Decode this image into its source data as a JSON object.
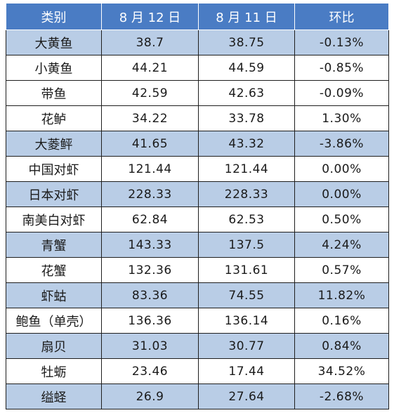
{
  "header": {
    "col_category": "类别",
    "col_aug12": "8 月 12 日",
    "col_aug11": "8 月 11 日",
    "col_change": "环比"
  },
  "rows": [
    {
      "name": "大黄鱼",
      "aug12": "38.7",
      "aug11": "38.75",
      "change": "-0.13%"
    },
    {
      "name": "小黄鱼",
      "aug12": "44.21",
      "aug11": "44.59",
      "change": "-0.85%"
    },
    {
      "name": "带鱼",
      "aug12": "42.59",
      "aug11": "42.63",
      "change": "-0.09%"
    },
    {
      "name": "花鲈",
      "aug12": "34.22",
      "aug11": "33.78",
      "change": "1.30%"
    },
    {
      "name": "大菱鲆",
      "aug12": "41.65",
      "aug11": "43.32",
      "change": "-3.86%"
    },
    {
      "name": "中国对虾",
      "aug12": "121.44",
      "aug11": "121.44",
      "change": "0.00%"
    },
    {
      "name": "日本对虾",
      "aug12": "228.33",
      "aug11": "228.33",
      "change": "0.00%"
    },
    {
      "name": "南美白对虾",
      "aug12": "62.84",
      "aug11": "62.53",
      "change": "0.50%"
    },
    {
      "name": "青蟹",
      "aug12": "143.33",
      "aug11": "137.5",
      "change": "4.24%"
    },
    {
      "name": "花蟹",
      "aug12": "132.36",
      "aug11": "131.61",
      "change": "0.57%"
    },
    {
      "name": "虾蛄",
      "aug12": "83.36",
      "aug11": "74.55",
      "change": "11.82%"
    },
    {
      "name": "鲍鱼（单壳）",
      "aug12": "136.36",
      "aug11": "136.14",
      "change": "0.16%"
    },
    {
      "name": "扇贝",
      "aug12": "31.03",
      "aug11": "30.77",
      "change": "0.84%"
    },
    {
      "name": "牡蛎",
      "aug12": "23.46",
      "aug11": "17.44",
      "change": "34.52%"
    },
    {
      "name": "缢蛏",
      "aug12": "26.9",
      "aug11": "27.64",
      "change": "-2.68%"
    }
  ],
  "colors": {
    "header_bg": "#4a7cc4",
    "shaded_row_bg": "#b9cde6",
    "plain_row_bg": "#ffffff"
  }
}
